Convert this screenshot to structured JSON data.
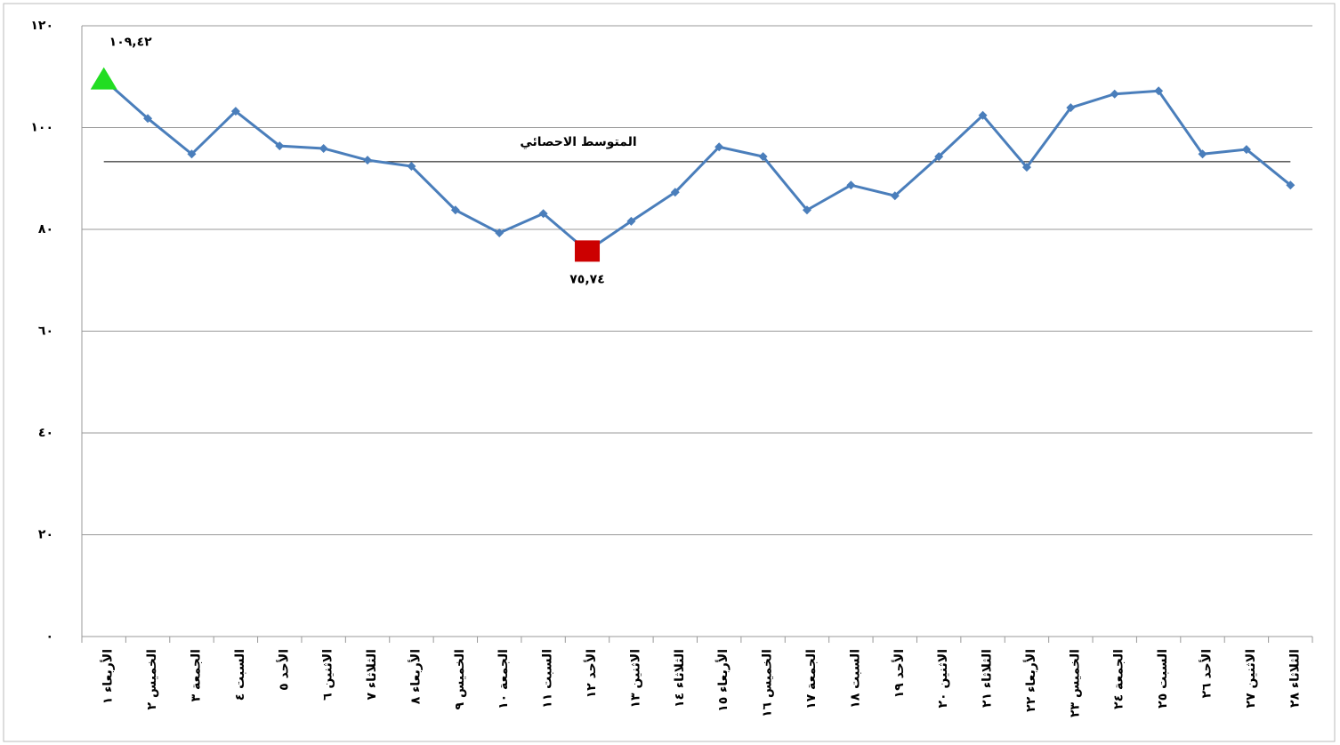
{
  "chart_data": {
    "type": "line",
    "categories": [
      "الأربعاء ١",
      "الخميس ٢",
      "الجمعة ٣",
      "السبت ٤",
      "الأحد ٥",
      "الاثنين ٦",
      "الثلاثاء ٧",
      "الأربعاء ٨",
      "الخميس ٩",
      "الجمعة ١٠",
      "السبت ١١",
      "الأحد ١٢",
      "الاثنين ١٣",
      "الثلاثاء ١٤",
      "الأربعاء ١٥",
      "الخميس ١٦",
      "الجمعة ١٧",
      "السبت ١٨",
      "الأحد ١٩",
      "الاثنين ٢٠",
      "الثلاثاء ٢١",
      "الأربعاء ٢٢",
      "الخميس ٢٣",
      "الجمعة ٢٤",
      "السبت ٢٥",
      "الأحد ٢٦",
      "الاثنين ٢٧",
      "الثلاثاء ٢٨"
    ],
    "values": [
      109.42,
      101.8,
      94.8,
      103.2,
      96.4,
      95.9,
      93.6,
      92.4,
      83.8,
      79.3,
      83.1,
      75.74,
      81.6,
      87.3,
      96.2,
      94.3,
      83.8,
      88.7,
      86.6,
      94.3,
      102.4,
      92.2,
      103.9,
      106.6,
      107.2,
      94.8,
      95.7,
      88.7
    ],
    "value_labels": [
      "١٠٩,٤٢",
      null,
      null,
      null,
      null,
      null,
      null,
      null,
      null,
      null,
      null,
      "٧٥,٧٤",
      null,
      null,
      null,
      null,
      null,
      null,
      null,
      null,
      null,
      null,
      null,
      null,
      null,
      null,
      null,
      null
    ],
    "color": "#4a7ebb",
    "max_color": "#22dd22",
    "min_color": "#cc0000",
    "mean": {
      "label": "المتوسط الاحصائي",
      "value": 93.3
    },
    "ylim": [
      0,
      120
    ],
    "yticks": [
      {
        "value": 0,
        "label": "٠"
      },
      {
        "value": 20,
        "label": "٢٠"
      },
      {
        "value": 40,
        "label": "٤٠"
      },
      {
        "value": 60,
        "label": "٦٠"
      },
      {
        "value": 80,
        "label": "٨٠"
      },
      {
        "value": 100,
        "label": "١٠٠"
      },
      {
        "value": 120,
        "label": "١٢٠"
      }
    ],
    "grid": true
  }
}
